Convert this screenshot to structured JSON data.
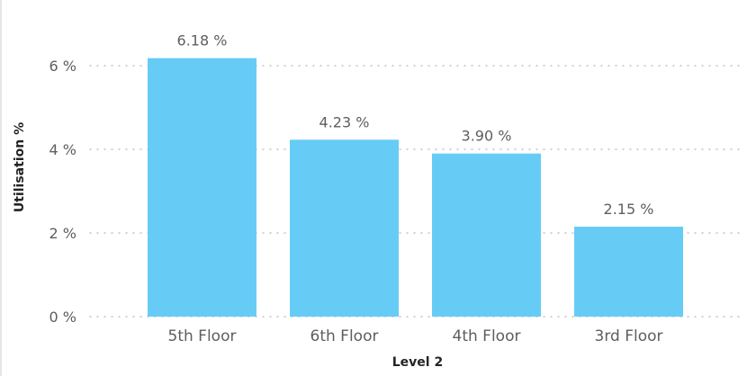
{
  "colors": {
    "bar": "#66ccf6",
    "gridline": "#c8c6c4",
    "text": "#605e5c",
    "axis_title": "#252423"
  },
  "chart_data": {
    "type": "bar",
    "categories": [
      "5th Floor",
      "6th Floor",
      "4th Floor",
      "3rd Floor"
    ],
    "values": [
      6.18,
      4.23,
      3.9,
      2.15
    ],
    "data_labels": [
      "6.18 %",
      "4.23 %",
      "3.90 %",
      "2.15 %"
    ],
    "xlabel": "Level 2",
    "ylabel": "Utilisation %",
    "ylim": [
      0,
      6.5
    ],
    "yticks": [
      0,
      2,
      4,
      6
    ],
    "ytick_labels": [
      "0 %",
      "2 %",
      "4 %",
      "6 %"
    ],
    "grid": true,
    "legend": "none"
  }
}
